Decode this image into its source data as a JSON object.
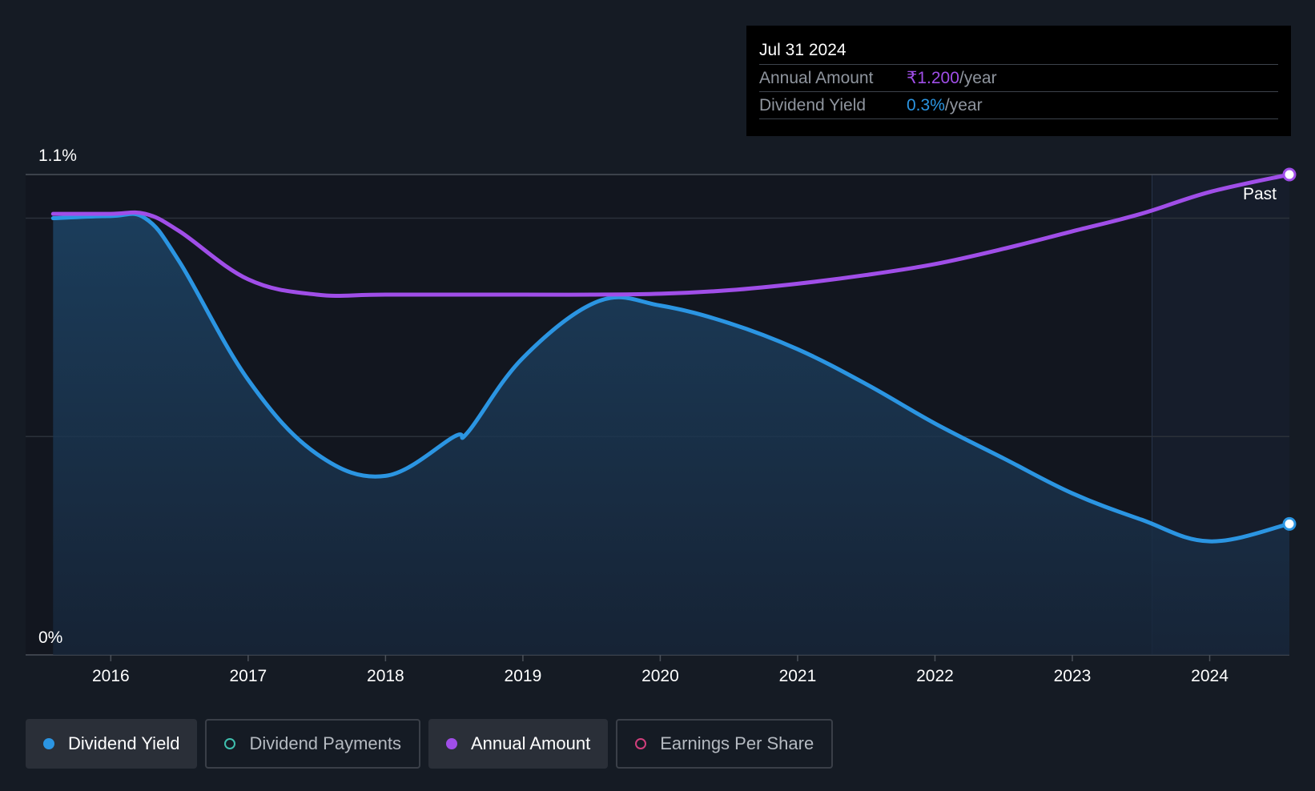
{
  "tooltip": {
    "date": "Jul 31 2024",
    "rows": [
      {
        "label": "Annual Amount",
        "value": "₹1.200",
        "unit": "/year",
        "color": "#a04ee8"
      },
      {
        "label": "Dividend Yield",
        "value": "0.3%",
        "unit": "/year",
        "color": "#2b95e2"
      }
    ]
  },
  "legend": [
    {
      "label": "Dividend Yield",
      "color": "#2b95e2",
      "active": true,
      "marker": "filled-dot"
    },
    {
      "label": "Dividend Payments",
      "color": "#3fbfae",
      "active": false,
      "marker": "ring"
    },
    {
      "label": "Annual Amount",
      "color": "#a04ee8",
      "active": true,
      "marker": "filled-dot"
    },
    {
      "label": "Earnings Per Share",
      "color": "#d13f7c",
      "active": false,
      "marker": "ring"
    }
  ],
  "chart_data": {
    "type": "line",
    "ylim": [
      0,
      1.1
    ],
    "y_ticks": [
      {
        "value": 0,
        "label": "0%"
      },
      {
        "value": 1.1,
        "label": "1.1%"
      }
    ],
    "gridlines": [
      1.0,
      0.5
    ],
    "xlim": [
      2015.38,
      2024.58
    ],
    "x_ticks": [
      2016,
      2017,
      2018,
      2019,
      2020,
      2021,
      2022,
      2023,
      2024
    ],
    "past_label": "Past",
    "past_region_start": 2023.58,
    "series": [
      {
        "name": "Dividend Yield",
        "color": "#2b95e2",
        "area": true,
        "points": [
          [
            2015.58,
            1.0
          ],
          [
            2016.0,
            1.005
          ],
          [
            2016.25,
            1.0
          ],
          [
            2016.5,
            0.9
          ],
          [
            2017.0,
            0.63
          ],
          [
            2017.5,
            0.46
          ],
          [
            2018.0,
            0.41
          ],
          [
            2018.5,
            0.5
          ],
          [
            2018.6,
            0.51
          ],
          [
            2019.0,
            0.68
          ],
          [
            2019.55,
            0.81
          ],
          [
            2020.0,
            0.8
          ],
          [
            2020.5,
            0.76
          ],
          [
            2021.0,
            0.7
          ],
          [
            2021.5,
            0.62
          ],
          [
            2022.0,
            0.53
          ],
          [
            2022.5,
            0.45
          ],
          [
            2023.0,
            0.37
          ],
          [
            2023.5,
            0.31
          ],
          [
            2024.0,
            0.26
          ],
          [
            2024.58,
            0.3
          ]
        ],
        "end_marker": true
      },
      {
        "name": "Annual Amount",
        "color": "#a04ee8",
        "area": false,
        "points": [
          [
            2015.58,
            1.01
          ],
          [
            2016.0,
            1.01
          ],
          [
            2016.25,
            1.01
          ],
          [
            2016.5,
            0.97
          ],
          [
            2017.0,
            0.86
          ],
          [
            2017.5,
            0.825
          ],
          [
            2018.0,
            0.825
          ],
          [
            2019.0,
            0.825
          ],
          [
            2019.5,
            0.825
          ],
          [
            2020.0,
            0.827
          ],
          [
            2020.5,
            0.835
          ],
          [
            2021.0,
            0.85
          ],
          [
            2021.5,
            0.87
          ],
          [
            2022.0,
            0.895
          ],
          [
            2022.5,
            0.93
          ],
          [
            2023.0,
            0.97
          ],
          [
            2023.5,
            1.01
          ],
          [
            2024.0,
            1.06
          ],
          [
            2024.58,
            1.1
          ]
        ],
        "end_marker": true
      }
    ]
  }
}
